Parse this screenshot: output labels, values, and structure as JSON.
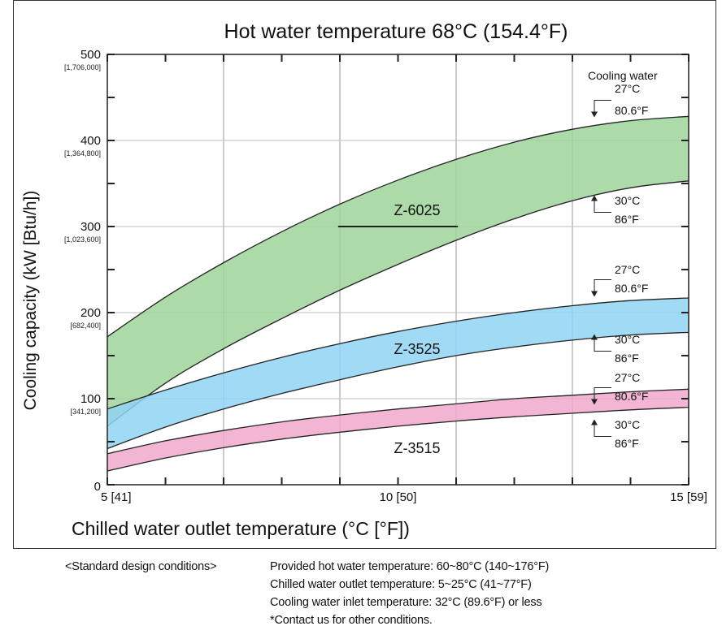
{
  "chart_data": {
    "type": "area",
    "title": "Hot water temperature 68°C (154.4°F)",
    "xlabel": "Chilled water outlet temperature (°C [°F])",
    "ylabel": "Cooling capacity (kW [Btu/h])",
    "xlim": [
      5,
      15
    ],
    "ylim": [
      0,
      500
    ],
    "x_ticks": [
      {
        "value": 5,
        "label": "5 [41]"
      },
      {
        "value": 10,
        "label": "10 [50]"
      },
      {
        "value": 15,
        "label": "15 [59]"
      }
    ],
    "y_ticks": [
      {
        "value": 0,
        "label": "0",
        "sub": ""
      },
      {
        "value": 100,
        "label": "100",
        "sub": "[341,200]"
      },
      {
        "value": 200,
        "label": "200",
        "sub": "[682,400]"
      },
      {
        "value": 300,
        "label": "300",
        "sub": "[1,023,600]"
      },
      {
        "value": 400,
        "label": "400",
        "sub": "[1,364,800]"
      },
      {
        "value": 500,
        "label": "500",
        "sub": "[1,706,000]"
      }
    ],
    "grid": true,
    "legend_title": "Cooling water",
    "x": [
      5,
      6,
      7,
      8,
      9,
      10,
      11,
      12,
      13,
      14,
      15
    ],
    "series": [
      {
        "name": "Z-6025",
        "color": "#9fd39a",
        "upper_label": "27°C 80.6°F",
        "lower_label": "30°C 86°F",
        "upper": [
          172,
          218,
          258,
          294,
          326,
          354,
          378,
          398,
          413,
          423,
          428
        ],
        "lower": [
          68,
          118,
          158,
          193,
          226,
          256,
          284,
          309,
          330,
          345,
          353
        ]
      },
      {
        "name": "Z-3525",
        "color": "#8fd3f3",
        "upper_label": "27°C 80.6°F",
        "lower_label": "30°C 86°F",
        "upper": [
          88,
          110,
          130,
          148,
          164,
          178,
          190,
          200,
          208,
          214,
          217
        ],
        "lower": [
          42,
          67,
          88,
          106,
          122,
          137,
          150,
          160,
          168,
          174,
          177
        ]
      },
      {
        "name": "Z-3515",
        "color": "#f0a8cd",
        "upper_label": "27°C 80.6°F",
        "lower_label": "30°C 86°F",
        "upper": [
          36,
          51,
          63,
          73,
          81,
          88,
          94,
          100,
          104,
          108,
          111
        ],
        "lower": [
          16,
          31,
          43,
          53,
          61,
          68,
          74,
          79,
          83,
          87,
          90
        ]
      }
    ]
  },
  "notes": {
    "heading": "<Standard design conditions>",
    "lines": [
      "Provided hot water temperature: 60~80°C (140~176°F)",
      "Chilled water outlet temperature: 5~25°C (41~77°F)",
      "Cooling water inlet temperature: 32°C (89.6°F) or less",
      "*Contact us for other conditions."
    ]
  }
}
